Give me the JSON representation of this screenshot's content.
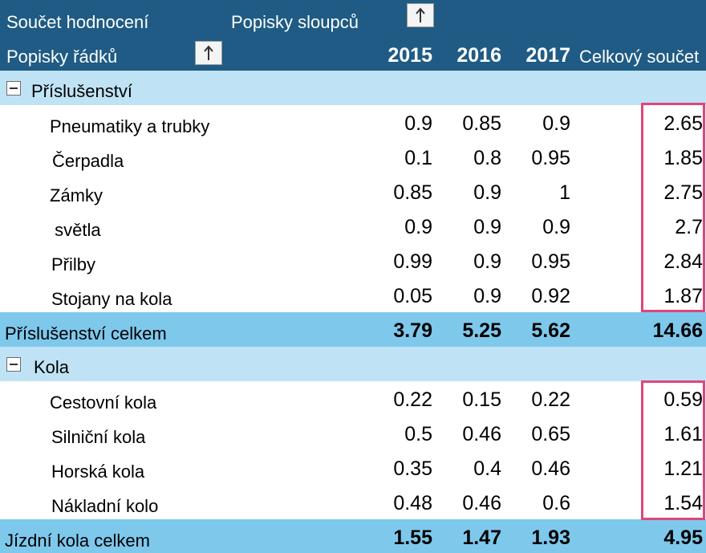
{
  "header": {
    "values_field": "Součet hodnocení",
    "column_labels": "Popisky sloupců",
    "row_labels": "Popisky řádků",
    "years": [
      "2015",
      "2016",
      "2017"
    ],
    "grand_total_label": "Celkový součet"
  },
  "groups": [
    {
      "name": "Příslušenství",
      "items": [
        {
          "label": "Pneumatiky a trubky",
          "values": [
            "0.9",
            "0.85",
            "0.9"
          ],
          "total": "2.65"
        },
        {
          "label": "Čerpadla",
          "values": [
            "0.1",
            "0.8",
            "0.95"
          ],
          "total": "1.85"
        },
        {
          "label": "Zámky",
          "values": [
            "0.85",
            "0.9",
            "1"
          ],
          "total": "2.75"
        },
        {
          "label": " světla",
          "values": [
            "0.9",
            "0.9",
            "0.9"
          ],
          "total": "2.7"
        },
        {
          "label": "Přilby",
          "values": [
            "0.99",
            "0.9",
            "0.95"
          ],
          "total": "2.84"
        },
        {
          "label": "Stojany na kola",
          "values": [
            "0.05",
            "0.9",
            "0.92"
          ],
          "total": "1.87"
        }
      ],
      "total_label": "Příslušenství celkem",
      "totals": [
        "3.79",
        "5.25",
        "5.62"
      ],
      "grand_total": "14.66"
    },
    {
      "name": "Kola",
      "items": [
        {
          "label": "Cestovní kola",
          "values": [
            "0.22",
            "0.15",
            "0.22"
          ],
          "total": "0.59"
        },
        {
          "label": "Silniční kola",
          "values": [
            "0.5",
            "0.46",
            "0.65"
          ],
          "total": "1.61"
        },
        {
          "label": "Horská kola",
          "values": [
            "0.35",
            "0.4",
            "0.46"
          ],
          "total": "1.21"
        },
        {
          "label": "Nákladní kolo",
          "values": [
            "0.48",
            "0.46",
            "0.6"
          ],
          "total": "1.54"
        }
      ],
      "total_label": "Jízdní kola celkem",
      "totals": [
        "1.55",
        "1.47",
        "1.93"
      ],
      "grand_total": "4.95"
    }
  ],
  "colors": {
    "header_bg": "#1f5b84",
    "group_row_bg": "#bfe3f5",
    "total_row_bg": "#7ec8ec",
    "highlight": "#e0457b"
  },
  "icons": {
    "sort_button": "arrow-up-icon",
    "group_toggle": "collapse-minus-icon"
  }
}
